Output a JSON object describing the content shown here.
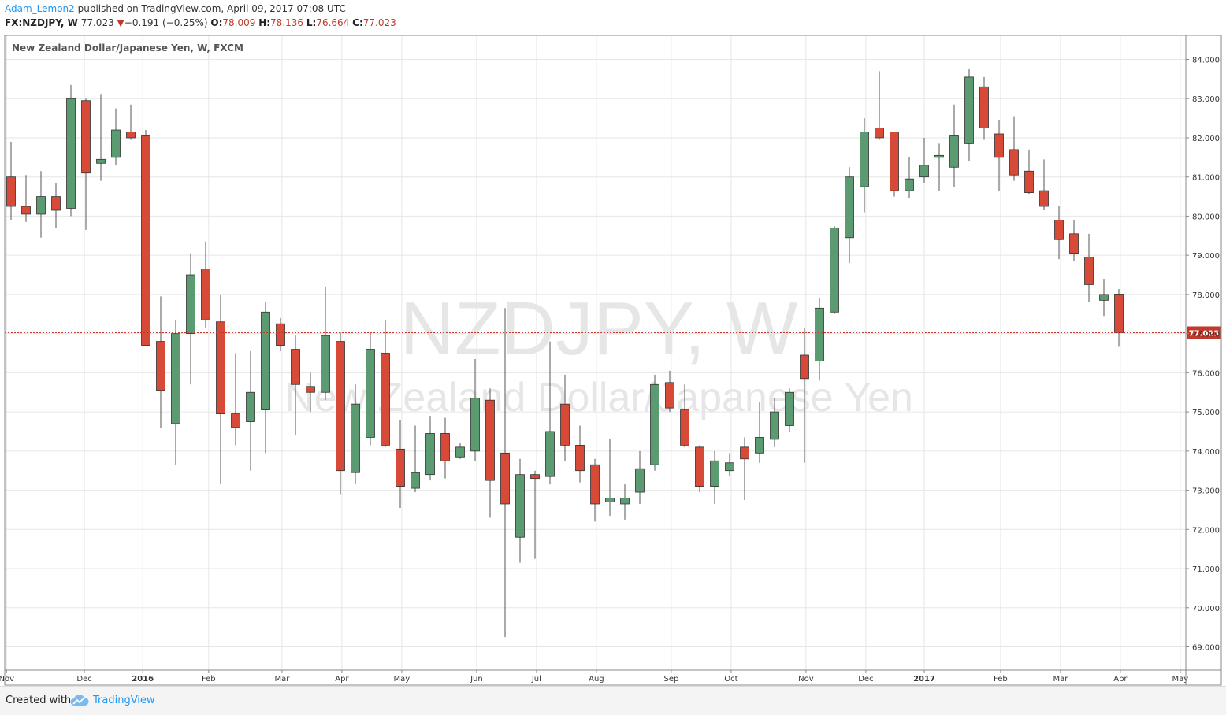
{
  "header": {
    "author": "Adam_Lemon2",
    "published_text": " published on TradingView.com, April 09, 2017 07:08 UTC"
  },
  "ticker": {
    "symbol": "FX:NZDJPY, W",
    "last": "77.023",
    "change": "−0.191 (−0.25%)",
    "open_label": "O:",
    "open": "78.009",
    "high_label": "H:",
    "high": "78.136",
    "low_label": "L:",
    "low": "76.664",
    "close_label": "C:",
    "close": "77.023"
  },
  "footer": {
    "created_with": "Created with",
    "brand": "TradingView"
  },
  "colors": {
    "up": "#5b9b72",
    "down": "#d84a38",
    "wick": "#555555",
    "grid": "#e6e6e6",
    "price_line": "#c0392b",
    "accent": "#2196f3"
  },
  "chart_data": {
    "type": "candlestick",
    "title": "New Zealand Dollar/Japanese Yen, W, FXCM",
    "watermark": "NZDJPY, W",
    "watermark_sub": "New Zealand Dollar/Japanese Yen",
    "ylim": [
      68.5,
      84.5
    ],
    "y_ticks": [
      "69.000",
      "70.000",
      "71.000",
      "72.000",
      "73.000",
      "74.000",
      "75.000",
      "76.000",
      "77.000",
      "78.000",
      "79.000",
      "80.000",
      "81.000",
      "82.000",
      "83.000",
      "84.000"
    ],
    "x_labels": [
      {
        "label": "Nov",
        "index": -0.3,
        "bold": false
      },
      {
        "label": "Dec",
        "index": 4.9,
        "bold": false
      },
      {
        "label": "2016",
        "index": 8.8,
        "bold": true
      },
      {
        "label": "Feb",
        "index": 13.2,
        "bold": false
      },
      {
        "label": "Mar",
        "index": 18.1,
        "bold": false
      },
      {
        "label": "Apr",
        "index": 22.1,
        "bold": false
      },
      {
        "label": "May",
        "index": 26.1,
        "bold": false
      },
      {
        "label": "Jun",
        "index": 31.1,
        "bold": false
      },
      {
        "label": "Jul",
        "index": 35.1,
        "bold": false
      },
      {
        "label": "Aug",
        "index": 39.1,
        "bold": false
      },
      {
        "label": "Sep",
        "index": 44.1,
        "bold": false
      },
      {
        "label": "Oct",
        "index": 48.1,
        "bold": false
      },
      {
        "label": "Nov",
        "index": 53.1,
        "bold": false
      },
      {
        "label": "Dec",
        "index": 57.1,
        "bold": false
      },
      {
        "label": "2017",
        "index": 61.0,
        "bold": true
      },
      {
        "label": "Feb",
        "index": 66.1,
        "bold": false
      },
      {
        "label": "Mar",
        "index": 70.1,
        "bold": false
      },
      {
        "label": "Apr",
        "index": 74.1,
        "bold": false
      },
      {
        "label": "May",
        "index": 78.1,
        "bold": false
      }
    ],
    "last_price": 77.023,
    "last_price_label": "77.023",
    "candles": [
      {
        "o": 81.0,
        "h": 81.9,
        "l": 79.9,
        "c": 80.25
      },
      {
        "o": 80.25,
        "h": 81.05,
        "l": 79.85,
        "c": 80.05
      },
      {
        "o": 80.05,
        "h": 81.15,
        "l": 79.45,
        "c": 80.5
      },
      {
        "o": 80.5,
        "h": 80.85,
        "l": 79.7,
        "c": 80.15
      },
      {
        "o": 80.2,
        "h": 83.35,
        "l": 80.0,
        "c": 83.0
      },
      {
        "o": 82.95,
        "h": 83.0,
        "l": 79.65,
        "c": 81.1
      },
      {
        "o": 81.35,
        "h": 83.1,
        "l": 80.9,
        "c": 81.45
      },
      {
        "o": 81.5,
        "h": 82.75,
        "l": 81.3,
        "c": 82.2
      },
      {
        "o": 82.15,
        "h": 82.85,
        "l": 81.95,
        "c": 82.0
      },
      {
        "o": 82.05,
        "h": 82.2,
        "l": 76.7,
        "c": 76.7
      },
      {
        "o": 76.8,
        "h": 77.95,
        "l": 74.6,
        "c": 75.55
      },
      {
        "o": 74.7,
        "h": 77.35,
        "l": 73.65,
        "c": 77.0
      },
      {
        "o": 77.0,
        "h": 79.05,
        "l": 75.7,
        "c": 78.5
      },
      {
        "o": 78.65,
        "h": 79.35,
        "l": 77.15,
        "c": 77.35
      },
      {
        "o": 77.3,
        "h": 78.0,
        "l": 73.15,
        "c": 74.95
      },
      {
        "o": 74.95,
        "h": 76.5,
        "l": 74.15,
        "c": 74.6
      },
      {
        "o": 74.75,
        "h": 76.55,
        "l": 73.5,
        "c": 75.5
      },
      {
        "o": 75.05,
        "h": 77.8,
        "l": 73.95,
        "c": 77.55
      },
      {
        "o": 77.25,
        "h": 77.4,
        "l": 76.55,
        "c": 76.7
      },
      {
        "o": 76.6,
        "h": 76.95,
        "l": 74.4,
        "c": 75.7
      },
      {
        "o": 75.65,
        "h": 76.0,
        "l": 75.0,
        "c": 75.5
      },
      {
        "o": 75.5,
        "h": 78.2,
        "l": 75.3,
        "c": 76.95
      },
      {
        "o": 76.8,
        "h": 77.05,
        "l": 72.9,
        "c": 73.5
      },
      {
        "o": 73.45,
        "h": 75.7,
        "l": 73.15,
        "c": 75.2
      },
      {
        "o": 74.35,
        "h": 77.05,
        "l": 74.15,
        "c": 76.6
      },
      {
        "o": 76.5,
        "h": 77.35,
        "l": 74.1,
        "c": 74.15
      },
      {
        "o": 74.05,
        "h": 74.8,
        "l": 72.55,
        "c": 73.1
      },
      {
        "o": 73.05,
        "h": 74.65,
        "l": 72.95,
        "c": 73.45
      },
      {
        "o": 73.4,
        "h": 74.9,
        "l": 73.25,
        "c": 74.45
      },
      {
        "o": 74.45,
        "h": 74.85,
        "l": 73.3,
        "c": 73.75
      },
      {
        "o": 73.85,
        "h": 74.2,
        "l": 73.8,
        "c": 74.1
      },
      {
        "o": 74.0,
        "h": 76.35,
        "l": 73.75,
        "c": 75.35
      },
      {
        "o": 75.3,
        "h": 75.6,
        "l": 72.3,
        "c": 73.25
      },
      {
        "o": 73.95,
        "h": 77.65,
        "l": 69.25,
        "c": 72.65
      },
      {
        "o": 71.8,
        "h": 73.8,
        "l": 71.15,
        "c": 73.4
      },
      {
        "o": 73.4,
        "h": 73.5,
        "l": 71.25,
        "c": 73.3
      },
      {
        "o": 73.35,
        "h": 76.8,
        "l": 73.15,
        "c": 74.5
      },
      {
        "o": 75.2,
        "h": 75.95,
        "l": 73.75,
        "c": 74.15
      },
      {
        "o": 74.15,
        "h": 74.65,
        "l": 73.2,
        "c": 73.5
      },
      {
        "o": 73.65,
        "h": 73.8,
        "l": 72.2,
        "c": 72.65
      },
      {
        "o": 72.7,
        "h": 74.3,
        "l": 72.35,
        "c": 72.8
      },
      {
        "o": 72.65,
        "h": 73.15,
        "l": 72.25,
        "c": 72.8
      },
      {
        "o": 72.95,
        "h": 74.0,
        "l": 72.65,
        "c": 73.55
      },
      {
        "o": 73.65,
        "h": 75.95,
        "l": 73.5,
        "c": 75.7
      },
      {
        "o": 75.75,
        "h": 76.05,
        "l": 75.0,
        "c": 75.1
      },
      {
        "o": 75.05,
        "h": 75.7,
        "l": 74.1,
        "c": 74.15
      },
      {
        "o": 74.1,
        "h": 74.15,
        "l": 72.95,
        "c": 73.1
      },
      {
        "o": 73.1,
        "h": 74.0,
        "l": 72.65,
        "c": 73.75
      },
      {
        "o": 73.5,
        "h": 73.95,
        "l": 73.35,
        "c": 73.7
      },
      {
        "o": 74.1,
        "h": 74.35,
        "l": 72.75,
        "c": 73.8
      },
      {
        "o": 73.95,
        "h": 75.25,
        "l": 73.7,
        "c": 74.35
      },
      {
        "o": 74.3,
        "h": 75.35,
        "l": 74.1,
        "c": 75.0
      },
      {
        "o": 74.65,
        "h": 75.6,
        "l": 74.5,
        "c": 75.5
      },
      {
        "o": 76.45,
        "h": 77.15,
        "l": 73.7,
        "c": 75.85
      },
      {
        "o": 76.3,
        "h": 77.9,
        "l": 75.8,
        "c": 77.65
      },
      {
        "o": 77.55,
        "h": 79.75,
        "l": 77.5,
        "c": 79.7
      },
      {
        "o": 79.45,
        "h": 81.25,
        "l": 78.8,
        "c": 81.0
      },
      {
        "o": 80.75,
        "h": 82.5,
        "l": 80.1,
        "c": 82.15
      },
      {
        "o": 82.25,
        "h": 83.7,
        "l": 81.95,
        "c": 82.0
      },
      {
        "o": 82.15,
        "h": 82.15,
        "l": 80.5,
        "c": 80.65
      },
      {
        "o": 80.65,
        "h": 81.5,
        "l": 80.45,
        "c": 80.95
      },
      {
        "o": 81.0,
        "h": 82.0,
        "l": 80.85,
        "c": 81.3
      },
      {
        "o": 81.5,
        "h": 81.85,
        "l": 80.65,
        "c": 81.55
      },
      {
        "o": 81.25,
        "h": 82.85,
        "l": 80.75,
        "c": 82.05
      },
      {
        "o": 81.85,
        "h": 83.75,
        "l": 81.4,
        "c": 83.55
      },
      {
        "o": 83.3,
        "h": 83.55,
        "l": 81.95,
        "c": 82.25
      },
      {
        "o": 82.1,
        "h": 82.45,
        "l": 80.65,
        "c": 81.5
      },
      {
        "o": 81.7,
        "h": 82.55,
        "l": 80.9,
        "c": 81.05
      },
      {
        "o": 81.15,
        "h": 81.7,
        "l": 80.55,
        "c": 80.6
      },
      {
        "o": 80.65,
        "h": 81.45,
        "l": 80.15,
        "c": 80.25
      },
      {
        "o": 79.9,
        "h": 80.25,
        "l": 78.9,
        "c": 79.4
      },
      {
        "o": 79.55,
        "h": 79.9,
        "l": 78.85,
        "c": 79.05
      },
      {
        "o": 78.95,
        "h": 79.55,
        "l": 77.8,
        "c": 78.25
      },
      {
        "o": 77.85,
        "h": 78.4,
        "l": 77.45,
        "c": 78.0
      },
      {
        "o": 78.009,
        "h": 78.136,
        "l": 76.664,
        "c": 77.023
      }
    ]
  }
}
